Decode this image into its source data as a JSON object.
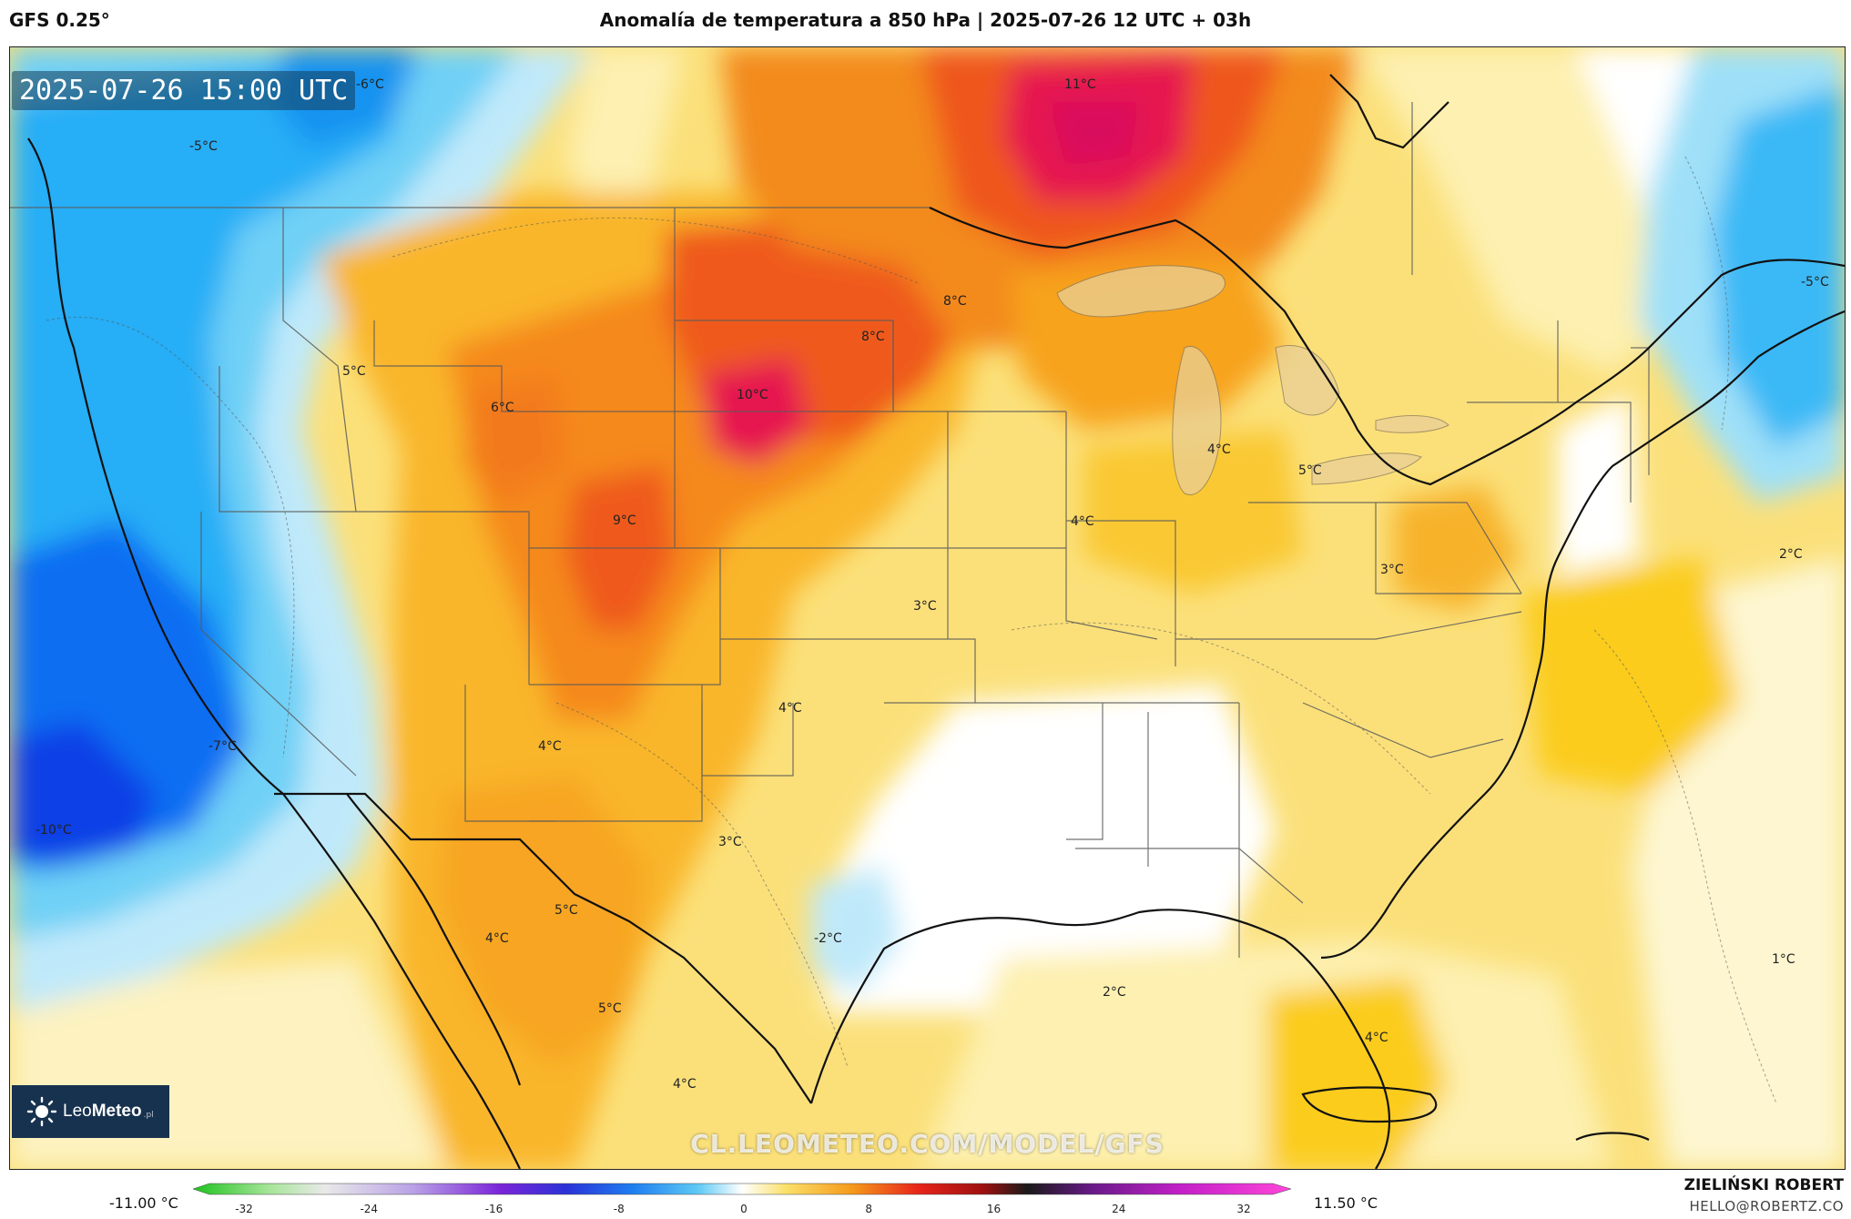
{
  "header": {
    "model": "GFS 0.25°",
    "title": "Anomalía de temperatura a 850 hPa | 2025-07-26 12 UTC + 03h"
  },
  "map": {
    "valid_time": "2025-07-26 15:00 UTC",
    "watermark": "CL.LEOMETEO.COM/MODEL/GFS",
    "logo": {
      "brand_light": "Leo",
      "brand_bold": "Meteo",
      "suffix": ".pl"
    },
    "labels": [
      {
        "text": "-6°C"
      },
      {
        "text": "-5°C"
      },
      {
        "text": "11°C"
      },
      {
        "text": "-5°C"
      },
      {
        "text": "8°C"
      },
      {
        "text": "8°C"
      },
      {
        "text": "5°C"
      },
      {
        "text": "6°C"
      },
      {
        "text": "10°C"
      },
      {
        "text": "4°C"
      },
      {
        "text": "5°C"
      },
      {
        "text": "9°C"
      },
      {
        "text": "4°C"
      },
      {
        "text": "2°C"
      },
      {
        "text": "3°C"
      },
      {
        "text": "3°C"
      },
      {
        "text": "4°C"
      },
      {
        "text": "-7°C"
      },
      {
        "text": "4°C"
      },
      {
        "text": "-10°C"
      },
      {
        "text": "3°C"
      },
      {
        "text": "5°C"
      },
      {
        "text": "-2°C"
      },
      {
        "text": "4°C"
      },
      {
        "text": "1°C"
      },
      {
        "text": "2°C"
      },
      {
        "text": "5°C"
      },
      {
        "text": "4°C"
      },
      {
        "text": "4°C"
      }
    ]
  },
  "colorbar": {
    "min_label": "-11.00 °C",
    "max_label": "11.50 °C",
    "range": [
      -32,
      32
    ],
    "ticks": [
      "-32",
      "-24",
      "-16",
      "-8",
      "0",
      "8",
      "16",
      "24",
      "32"
    ]
  },
  "credits": {
    "author": "ZIELIŃSKI ROBERT",
    "email": "HELLO@ROBERTZ.CO"
  },
  "colors": {
    "cold_strong": "#0a3ff0",
    "cold": "#1fa8f5",
    "cool": "#8fdcf7",
    "neutral": "#ffffff",
    "warm_light": "#fdf0a8",
    "warm": "#fbd33a",
    "hot": "#f79a17",
    "very_hot": "#ef4a1a",
    "extreme": "#e6125a"
  }
}
